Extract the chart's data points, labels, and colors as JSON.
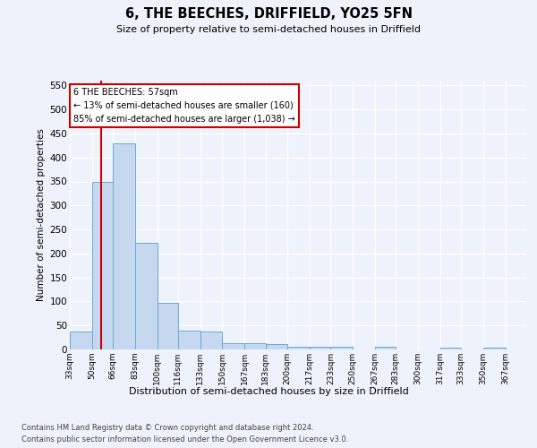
{
  "title": "6, THE BEECHES, DRIFFIELD, YO25 5FN",
  "subtitle": "Size of property relative to semi-detached houses in Driffield",
  "xlabel": "Distribution of semi-detached houses by size in Driffield",
  "ylabel": "Number of semi-detached properties",
  "footer_line1": "Contains HM Land Registry data © Crown copyright and database right 2024.",
  "footer_line2": "Contains public sector information licensed under the Open Government Licence v3.0.",
  "annotation_line1": "6 THE BEECHES: 57sqm",
  "annotation_line2": "← 13% of semi-detached houses are smaller (160)",
  "annotation_line3": "85% of semi-detached houses are larger (1,038) →",
  "property_size_x": 57,
  "bar_left_edges": [
    33,
    50,
    66,
    83,
    100,
    116,
    133,
    150,
    167,
    183,
    200,
    217,
    233,
    250,
    267,
    283,
    300,
    317,
    333,
    350,
    367
  ],
  "bar_widths": [
    17,
    16,
    17,
    17,
    16,
    17,
    17,
    17,
    16,
    17,
    17,
    16,
    17,
    17,
    16,
    17,
    17,
    16,
    17,
    17,
    16
  ],
  "bar_heights": [
    38,
    350,
    430,
    222,
    98,
    40,
    37,
    13,
    14,
    11,
    5,
    5,
    5,
    0,
    5,
    0,
    0,
    3,
    0,
    3,
    0
  ],
  "bar_categories": [
    "33sqm",
    "50sqm",
    "66sqm",
    "83sqm",
    "100sqm",
    "116sqm",
    "133sqm",
    "150sqm",
    "167sqm",
    "183sqm",
    "200sqm",
    "217sqm",
    "233sqm",
    "250sqm",
    "267sqm",
    "283sqm",
    "300sqm",
    "317sqm",
    "333sqm",
    "350sqm",
    "367sqm"
  ],
  "bar_color": "#c5d8f0",
  "bar_edge_color": "#6aaad4",
  "red_line_color": "#cc0000",
  "bg_color": "#eef2fa",
  "grid_color": "#ffffff",
  "ylim_max": 560,
  "yticks": [
    0,
    50,
    100,
    150,
    200,
    250,
    300,
    350,
    400,
    450,
    500,
    550
  ],
  "xlim_min": 33,
  "xlim_max": 383
}
